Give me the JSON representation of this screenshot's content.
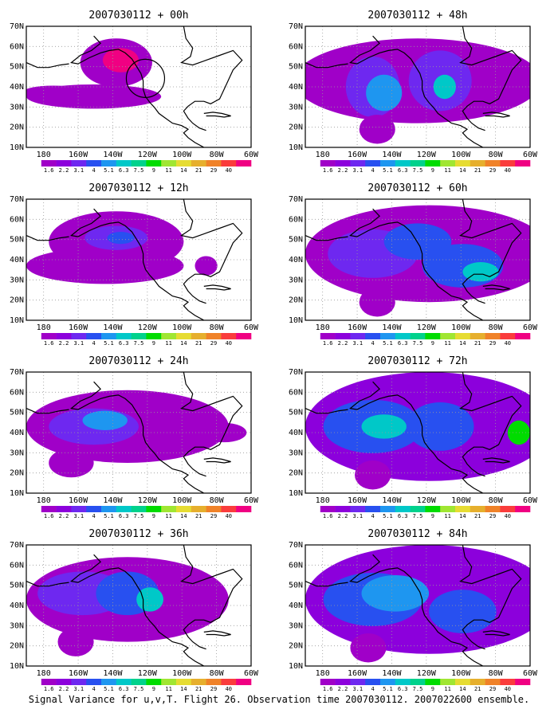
{
  "figure": {
    "caption": "Signal Variance for u,v,T. Flight 26. Observation time 2007030112. 2007022600 ensemble."
  },
  "map": {
    "lat_labels": [
      "70N",
      "60N",
      "50N",
      "40N",
      "30N",
      "20N",
      "10N"
    ],
    "lon_labels": [
      "180",
      "160W",
      "140W",
      "120W",
      "100W",
      "80W",
      "60W"
    ],
    "extent": {
      "lon": [
        -190,
        -60
      ],
      "lat": [
        10,
        70
      ]
    }
  },
  "colorbar": {
    "labels": [
      "1.6",
      "2.2",
      "3.1",
      "4",
      "5.1",
      "6.3",
      "7.5",
      "9",
      "11",
      "14",
      "21",
      "29",
      "40"
    ],
    "colors": [
      "#ffffff",
      "#a000c8",
      "#8c00dc",
      "#6e28f0",
      "#2850f0",
      "#1e96f0",
      "#00c8c8",
      "#00d28c",
      "#00dc00",
      "#a0e632",
      "#e6dc32",
      "#e6af2d",
      "#f08228",
      "#fa3c3c",
      "#f00082"
    ]
  },
  "panels": [
    {
      "title": "2007030112 + 00h"
    },
    {
      "title": "2007030112 + 48h"
    },
    {
      "title": "2007030112 + 12h"
    },
    {
      "title": "2007030112 + 60h"
    },
    {
      "title": "2007030112 + 24h"
    },
    {
      "title": "2007030112 + 72h"
    },
    {
      "title": "2007030112 + 36h"
    },
    {
      "title": "2007030112 + 84h"
    }
  ]
}
